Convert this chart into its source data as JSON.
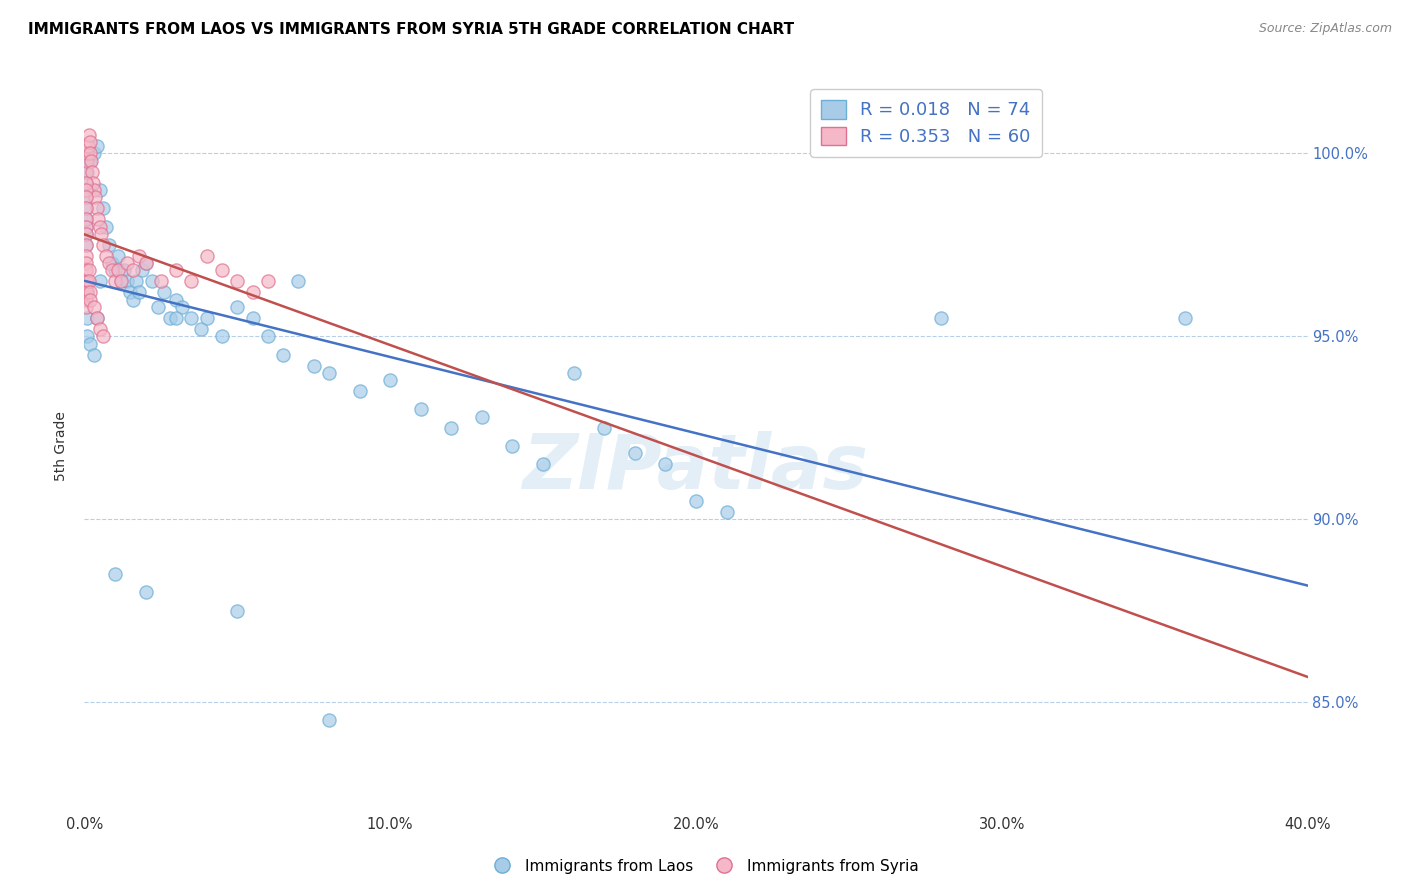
{
  "title": "IMMIGRANTS FROM LAOS VS IMMIGRANTS FROM SYRIA 5TH GRADE CORRELATION CHART",
  "source": "Source: ZipAtlas.com",
  "ylabel": "5th Grade",
  "x_tick_labels": [
    "0.0%",
    "10.0%",
    "20.0%",
    "30.0%",
    "40.0%"
  ],
  "x_tick_values": [
    0.0,
    10.0,
    20.0,
    30.0,
    40.0
  ],
  "y_tick_labels": [
    "85.0%",
    "90.0%",
    "95.0%",
    "100.0%"
  ],
  "y_tick_values": [
    85.0,
    90.0,
    95.0,
    100.0
  ],
  "xlim": [
    0.0,
    40.0
  ],
  "ylim": [
    82.0,
    102.0
  ],
  "legend_r1": "0.018",
  "legend_n1": "74",
  "legend_r2": "0.353",
  "legend_n2": "60",
  "watermark": "ZIPatlas",
  "blue_scatter_color": "#a8cce8",
  "blue_edge_color": "#6baed6",
  "pink_scatter_color": "#f4b8c8",
  "pink_edge_color": "#e07090",
  "blue_line_color": "#4472c4",
  "pink_line_color": "#c0504d",
  "laos_x": [
    0.1,
    0.2,
    0.3,
    0.4,
    0.5,
    0.6,
    0.7,
    0.8,
    0.9,
    1.0,
    1.1,
    1.2,
    1.3,
    1.4,
    1.5,
    1.6,
    1.7,
    1.8,
    1.9,
    2.0,
    2.2,
    2.4,
    2.6,
    2.8,
    3.0,
    3.2,
    3.5,
    3.8,
    4.0,
    4.5,
    5.0,
    5.5,
    6.0,
    6.5,
    7.0,
    7.5,
    8.0,
    9.0,
    10.0,
    11.0,
    12.0,
    13.0,
    14.0,
    15.0,
    16.0,
    17.0,
    18.0,
    19.0,
    20.0,
    21.0,
    0.05,
    0.05,
    0.05,
    0.05,
    0.05,
    0.05,
    0.05,
    0.05,
    0.05,
    0.05,
    0.1,
    0.1,
    0.1,
    0.2,
    0.3,
    0.4,
    3.0,
    28.0,
    36.0,
    0.5,
    1.0,
    2.0,
    5.0,
    8.0
  ],
  "laos_y": [
    99.5,
    99.8,
    100.0,
    100.2,
    99.0,
    98.5,
    98.0,
    97.5,
    97.0,
    96.8,
    97.2,
    96.5,
    96.8,
    96.5,
    96.2,
    96.0,
    96.5,
    96.2,
    96.8,
    97.0,
    96.5,
    95.8,
    96.2,
    95.5,
    96.0,
    95.8,
    95.5,
    95.2,
    95.5,
    95.0,
    95.8,
    95.5,
    95.0,
    94.5,
    96.5,
    94.2,
    94.0,
    93.5,
    93.8,
    93.0,
    92.5,
    92.8,
    92.0,
    91.5,
    94.0,
    92.5,
    91.8,
    91.5,
    90.5,
    90.2,
    99.8,
    99.5,
    99.2,
    99.0,
    98.8,
    98.5,
    98.2,
    98.0,
    97.8,
    97.5,
    96.2,
    95.5,
    95.0,
    94.8,
    94.5,
    95.5,
    95.5,
    95.5,
    95.5,
    96.5,
    88.5,
    88.0,
    87.5,
    84.5
  ],
  "syria_x": [
    0.05,
    0.08,
    0.1,
    0.12,
    0.15,
    0.18,
    0.2,
    0.22,
    0.25,
    0.28,
    0.3,
    0.35,
    0.4,
    0.45,
    0.5,
    0.55,
    0.6,
    0.7,
    0.8,
    0.9,
    1.0,
    1.1,
    1.2,
    1.4,
    1.6,
    1.8,
    2.0,
    2.5,
    3.0,
    3.5,
    4.0,
    4.5,
    5.0,
    5.5,
    6.0,
    0.05,
    0.05,
    0.05,
    0.05,
    0.05,
    0.05,
    0.05,
    0.05,
    0.05,
    0.05,
    0.05,
    0.05,
    0.05,
    0.05,
    0.05,
    0.1,
    0.1,
    0.15,
    0.15,
    0.2,
    0.2,
    0.3,
    0.4,
    0.5,
    0.6
  ],
  "syria_y": [
    99.5,
    99.8,
    100.0,
    100.2,
    100.5,
    100.3,
    100.0,
    99.8,
    99.5,
    99.2,
    99.0,
    98.8,
    98.5,
    98.2,
    98.0,
    97.8,
    97.5,
    97.2,
    97.0,
    96.8,
    96.5,
    96.8,
    96.5,
    97.0,
    96.8,
    97.2,
    97.0,
    96.5,
    96.8,
    96.5,
    97.2,
    96.8,
    96.5,
    96.2,
    96.5,
    99.2,
    99.0,
    98.8,
    98.5,
    98.2,
    98.0,
    97.8,
    97.5,
    97.2,
    97.0,
    96.8,
    96.5,
    96.2,
    96.0,
    95.8,
    96.5,
    96.2,
    96.8,
    96.5,
    96.2,
    96.0,
    95.8,
    95.5,
    95.2,
    95.0
  ]
}
